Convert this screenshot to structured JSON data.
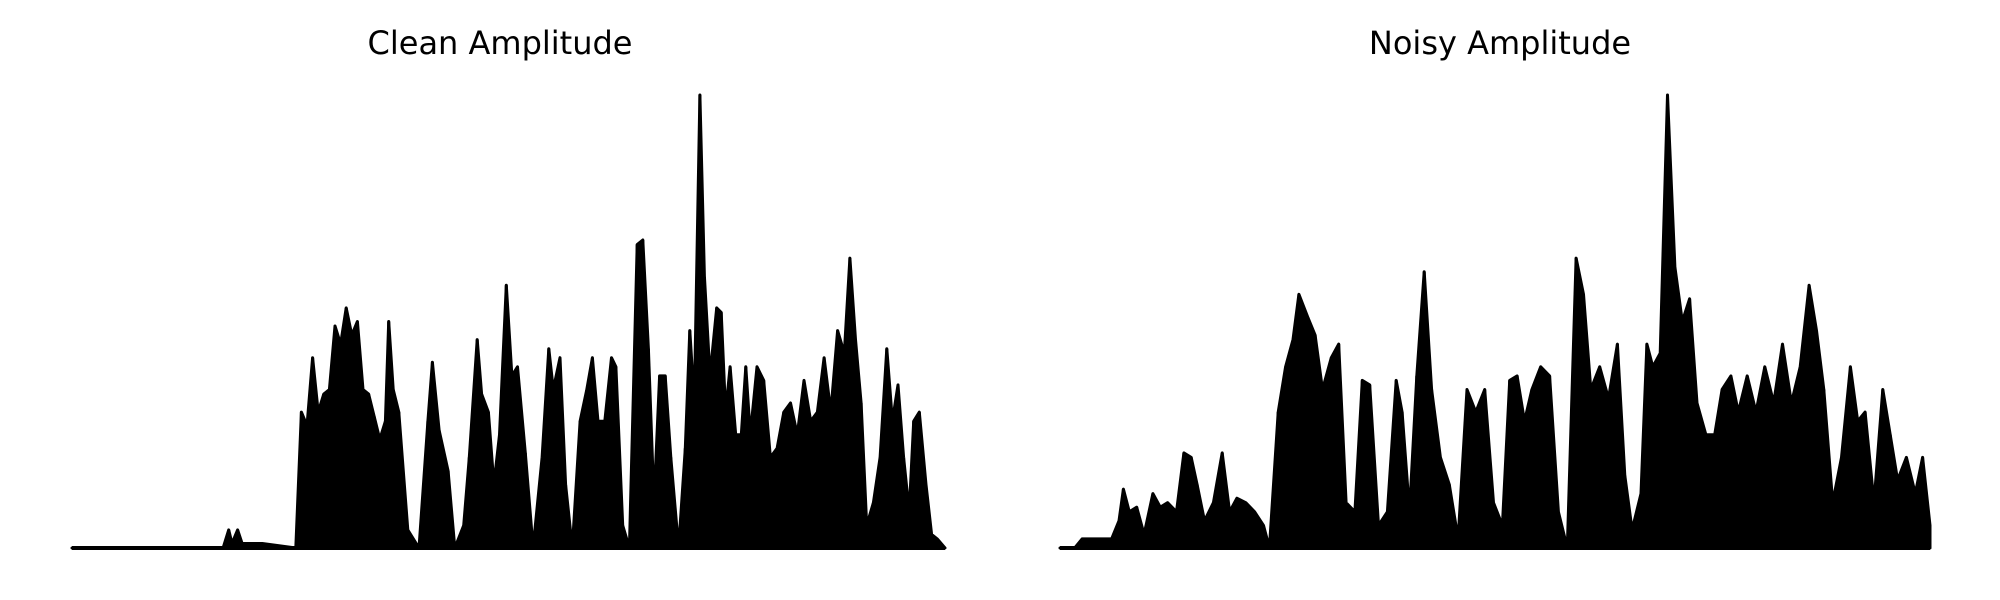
{
  "chart_data": [
    {
      "type": "area",
      "title": "Clean Amplitude",
      "xlabel": "",
      "ylabel": "",
      "axes_visible": false,
      "grid": false,
      "color": "#000000",
      "ylim": [
        0,
        1.0
      ],
      "envelope": [
        [
          0.0,
          0.0
        ],
        [
          0.135,
          0.0
        ],
        [
          0.14,
          0.04
        ],
        [
          0.143,
          0.01
        ],
        [
          0.148,
          0.04
        ],
        [
          0.152,
          0.01
        ],
        [
          0.17,
          0.01
        ],
        [
          0.2,
          0.0
        ],
        [
          0.205,
          0.3
        ],
        [
          0.21,
          0.27
        ],
        [
          0.215,
          0.42
        ],
        [
          0.22,
          0.3
        ],
        [
          0.225,
          0.34
        ],
        [
          0.23,
          0.35
        ],
        [
          0.235,
          0.49
        ],
        [
          0.24,
          0.45
        ],
        [
          0.245,
          0.53
        ],
        [
          0.25,
          0.47
        ],
        [
          0.255,
          0.5
        ],
        [
          0.26,
          0.35
        ],
        [
          0.265,
          0.34
        ],
        [
          0.27,
          0.29
        ],
        [
          0.275,
          0.24
        ],
        [
          0.28,
          0.28
        ],
        [
          0.283,
          0.5
        ],
        [
          0.287,
          0.35
        ],
        [
          0.292,
          0.3
        ],
        [
          0.3,
          0.04
        ],
        [
          0.31,
          0.0
        ],
        [
          0.318,
          0.28
        ],
        [
          0.322,
          0.41
        ],
        [
          0.328,
          0.26
        ],
        [
          0.336,
          0.17
        ],
        [
          0.342,
          0.0
        ],
        [
          0.35,
          0.05
        ],
        [
          0.355,
          0.2
        ],
        [
          0.362,
          0.46
        ],
        [
          0.366,
          0.34
        ],
        [
          0.372,
          0.3
        ],
        [
          0.377,
          0.14
        ],
        [
          0.382,
          0.25
        ],
        [
          0.388,
          0.58
        ],
        [
          0.393,
          0.38
        ],
        [
          0.398,
          0.4
        ],
        [
          0.405,
          0.21
        ],
        [
          0.412,
          0.0
        ],
        [
          0.42,
          0.2
        ],
        [
          0.426,
          0.44
        ],
        [
          0.43,
          0.35
        ],
        [
          0.436,
          0.42
        ],
        [
          0.441,
          0.14
        ],
        [
          0.447,
          0.0
        ],
        [
          0.454,
          0.28
        ],
        [
          0.46,
          0.35
        ],
        [
          0.465,
          0.42
        ],
        [
          0.47,
          0.28
        ],
        [
          0.476,
          0.28
        ],
        [
          0.482,
          0.42
        ],
        [
          0.486,
          0.4
        ],
        [
          0.492,
          0.05
        ],
        [
          0.498,
          0.0
        ],
        [
          0.505,
          0.67
        ],
        [
          0.51,
          0.68
        ],
        [
          0.515,
          0.44
        ],
        [
          0.52,
          0.1
        ],
        [
          0.525,
          0.38
        ],
        [
          0.53,
          0.38
        ],
        [
          0.535,
          0.2
        ],
        [
          0.542,
          0.0
        ],
        [
          0.548,
          0.22
        ],
        [
          0.552,
          0.48
        ],
        [
          0.556,
          0.32
        ],
        [
          0.561,
          1.0
        ],
        [
          0.565,
          0.6
        ],
        [
          0.57,
          0.38
        ],
        [
          0.576,
          0.53
        ],
        [
          0.58,
          0.52
        ],
        [
          0.584,
          0.3
        ],
        [
          0.588,
          0.4
        ],
        [
          0.593,
          0.25
        ],
        [
          0.598,
          0.25
        ],
        [
          0.602,
          0.4
        ],
        [
          0.606,
          0.25
        ],
        [
          0.612,
          0.4
        ],
        [
          0.618,
          0.37
        ],
        [
          0.624,
          0.2
        ],
        [
          0.63,
          0.22
        ],
        [
          0.636,
          0.3
        ],
        [
          0.642,
          0.32
        ],
        [
          0.648,
          0.25
        ],
        [
          0.654,
          0.37
        ],
        [
          0.66,
          0.28
        ],
        [
          0.666,
          0.3
        ],
        [
          0.672,
          0.42
        ],
        [
          0.678,
          0.3
        ],
        [
          0.684,
          0.48
        ],
        [
          0.69,
          0.43
        ],
        [
          0.695,
          0.64
        ],
        [
          0.7,
          0.46
        ],
        [
          0.705,
          0.32
        ],
        [
          0.71,
          0.05
        ],
        [
          0.716,
          0.1
        ],
        [
          0.722,
          0.2
        ],
        [
          0.728,
          0.44
        ],
        [
          0.733,
          0.28
        ],
        [
          0.738,
          0.36
        ],
        [
          0.743,
          0.2
        ],
        [
          0.748,
          0.08
        ],
        [
          0.752,
          0.28
        ],
        [
          0.757,
          0.3
        ],
        [
          0.763,
          0.14
        ],
        [
          0.768,
          0.03
        ],
        [
          0.773,
          0.02
        ],
        [
          0.78,
          0.0
        ]
      ]
    },
    {
      "type": "area",
      "title": "Noisy Amplitude",
      "xlabel": "",
      "ylabel": "",
      "axes_visible": false,
      "grid": false,
      "color": "#000000",
      "ylim": [
        0,
        1.0
      ],
      "envelope": [
        [
          0.0,
          0.0
        ],
        [
          0.01,
          0.0
        ],
        [
          0.015,
          0.02
        ],
        [
          0.025,
          0.02
        ],
        [
          0.035,
          0.02
        ],
        [
          0.04,
          0.06
        ],
        [
          0.043,
          0.13
        ],
        [
          0.047,
          0.08
        ],
        [
          0.052,
          0.09
        ],
        [
          0.057,
          0.03
        ],
        [
          0.063,
          0.12
        ],
        [
          0.068,
          0.09
        ],
        [
          0.073,
          0.1
        ],
        [
          0.079,
          0.08
        ],
        [
          0.084,
          0.21
        ],
        [
          0.089,
          0.2
        ],
        [
          0.093,
          0.14
        ],
        [
          0.098,
          0.06
        ],
        [
          0.104,
          0.1
        ],
        [
          0.11,
          0.21
        ],
        [
          0.115,
          0.08
        ],
        [
          0.12,
          0.11
        ],
        [
          0.126,
          0.1
        ],
        [
          0.132,
          0.08
        ],
        [
          0.138,
          0.05
        ],
        [
          0.142,
          0.0
        ],
        [
          0.148,
          0.3
        ],
        [
          0.153,
          0.4
        ],
        [
          0.158,
          0.46
        ],
        [
          0.162,
          0.56
        ],
        [
          0.168,
          0.51
        ],
        [
          0.173,
          0.47
        ],
        [
          0.178,
          0.35
        ],
        [
          0.184,
          0.42
        ],
        [
          0.189,
          0.45
        ],
        [
          0.194,
          0.1
        ],
        [
          0.2,
          0.08
        ],
        [
          0.205,
          0.37
        ],
        [
          0.21,
          0.36
        ],
        [
          0.216,
          0.05
        ],
        [
          0.222,
          0.08
        ],
        [
          0.228,
          0.37
        ],
        [
          0.232,
          0.3
        ],
        [
          0.237,
          0.08
        ],
        [
          0.242,
          0.38
        ],
        [
          0.247,
          0.61
        ],
        [
          0.252,
          0.35
        ],
        [
          0.258,
          0.2
        ],
        [
          0.264,
          0.14
        ],
        [
          0.27,
          0.02
        ],
        [
          0.276,
          0.35
        ],
        [
          0.282,
          0.3
        ],
        [
          0.288,
          0.35
        ],
        [
          0.294,
          0.1
        ],
        [
          0.3,
          0.05
        ],
        [
          0.305,
          0.37
        ],
        [
          0.31,
          0.38
        ],
        [
          0.315,
          0.28
        ],
        [
          0.32,
          0.35
        ],
        [
          0.326,
          0.4
        ],
        [
          0.332,
          0.38
        ],
        [
          0.338,
          0.08
        ],
        [
          0.344,
          0.0
        ],
        [
          0.35,
          0.64
        ],
        [
          0.355,
          0.56
        ],
        [
          0.36,
          0.35
        ],
        [
          0.366,
          0.4
        ],
        [
          0.372,
          0.33
        ],
        [
          0.378,
          0.45
        ],
        [
          0.383,
          0.16
        ],
        [
          0.388,
          0.04
        ],
        [
          0.394,
          0.12
        ],
        [
          0.398,
          0.45
        ],
        [
          0.402,
          0.4
        ],
        [
          0.407,
          0.43
        ],
        [
          0.412,
          1.0
        ],
        [
          0.417,
          0.62
        ],
        [
          0.422,
          0.5
        ],
        [
          0.427,
          0.55
        ],
        [
          0.432,
          0.32
        ],
        [
          0.438,
          0.25
        ],
        [
          0.444,
          0.25
        ],
        [
          0.449,
          0.35
        ],
        [
          0.455,
          0.38
        ],
        [
          0.46,
          0.3
        ],
        [
          0.466,
          0.38
        ],
        [
          0.472,
          0.3
        ],
        [
          0.478,
          0.4
        ],
        [
          0.484,
          0.32
        ],
        [
          0.49,
          0.45
        ],
        [
          0.496,
          0.32
        ],
        [
          0.502,
          0.4
        ],
        [
          0.508,
          0.58
        ],
        [
          0.513,
          0.48
        ],
        [
          0.518,
          0.35
        ],
        [
          0.524,
          0.1
        ],
        [
          0.53,
          0.2
        ],
        [
          0.536,
          0.4
        ],
        [
          0.541,
          0.28
        ],
        [
          0.546,
          0.3
        ],
        [
          0.552,
          0.1
        ],
        [
          0.558,
          0.35
        ],
        [
          0.563,
          0.25
        ],
        [
          0.568,
          0.15
        ],
        [
          0.574,
          0.2
        ],
        [
          0.58,
          0.12
        ],
        [
          0.585,
          0.2
        ],
        [
          0.59,
          0.05
        ]
      ]
    }
  ]
}
